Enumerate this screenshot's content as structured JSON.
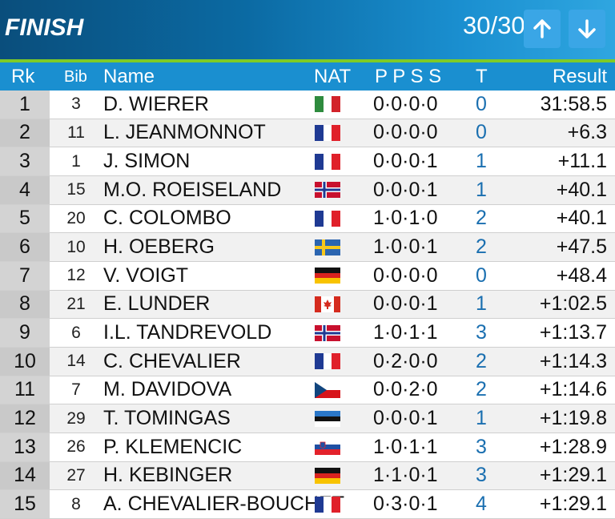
{
  "header": {
    "title": "FINISH",
    "counter": "30/30",
    "up_icon": "arrow-up-icon",
    "down_icon": "arrow-down-icon"
  },
  "columns": {
    "rank": "Rk",
    "bib": "Bib",
    "name": "Name",
    "nat": "NAT",
    "penalties": "P P S S",
    "total": "T",
    "result": "Result"
  },
  "colors": {
    "header_blue": "#0b6aa3",
    "column_blue": "#1a8fd0",
    "accent_green": "#7ecb27",
    "button_blue": "#3aa6e6"
  },
  "rows": [
    {
      "rank": "1",
      "bib": "3",
      "name": "D. WIERER",
      "nat": "ITA",
      "shooting": "0·0·0·0",
      "total": "0",
      "result": "31:58.5"
    },
    {
      "rank": "2",
      "bib": "11",
      "name": "L. JEANMONNOT",
      "nat": "FRA",
      "shooting": "0·0·0·0",
      "total": "0",
      "result": "+6.3"
    },
    {
      "rank": "3",
      "bib": "1",
      "name": "J. SIMON",
      "nat": "FRA",
      "shooting": "0·0·0·1",
      "total": "1",
      "result": "+11.1"
    },
    {
      "rank": "4",
      "bib": "15",
      "name": "M.O. ROEISELAND",
      "nat": "NOR",
      "shooting": "0·0·0·1",
      "total": "1",
      "result": "+40.1"
    },
    {
      "rank": "5",
      "bib": "20",
      "name": "C. COLOMBO",
      "nat": "FRA",
      "shooting": "1·0·1·0",
      "total": "2",
      "result": "+40.1"
    },
    {
      "rank": "6",
      "bib": "10",
      "name": "H. OEBERG",
      "nat": "SWE",
      "shooting": "1·0·0·1",
      "total": "2",
      "result": "+47.5"
    },
    {
      "rank": "7",
      "bib": "12",
      "name": "V. VOIGT",
      "nat": "GER",
      "shooting": "0·0·0·0",
      "total": "0",
      "result": "+48.4"
    },
    {
      "rank": "8",
      "bib": "21",
      "name": "E. LUNDER",
      "nat": "CAN",
      "shooting": "0·0·0·1",
      "total": "1",
      "result": "+1:02.5"
    },
    {
      "rank": "9",
      "bib": "6",
      "name": "I.L. TANDREVOLD",
      "nat": "NOR",
      "shooting": "1·0·1·1",
      "total": "3",
      "result": "+1:13.7"
    },
    {
      "rank": "10",
      "bib": "14",
      "name": "C. CHEVALIER",
      "nat": "FRA",
      "shooting": "0·2·0·0",
      "total": "2",
      "result": "+1:14.3"
    },
    {
      "rank": "11",
      "bib": "7",
      "name": "M. DAVIDOVA",
      "nat": "CZE",
      "shooting": "0·0·2·0",
      "total": "2",
      "result": "+1:14.6"
    },
    {
      "rank": "12",
      "bib": "29",
      "name": "T. TOMINGAS",
      "nat": "EST",
      "shooting": "0·0·0·1",
      "total": "1",
      "result": "+1:19.8"
    },
    {
      "rank": "13",
      "bib": "26",
      "name": "P. KLEMENCIC",
      "nat": "SLO",
      "shooting": "1·0·1·1",
      "total": "3",
      "result": "+1:28.9"
    },
    {
      "rank": "14",
      "bib": "27",
      "name": "H. KEBINGER",
      "nat": "GER",
      "shooting": "1·1·0·1",
      "total": "3",
      "result": "+1:29.1"
    },
    {
      "rank": "15",
      "bib": "8",
      "name": "A. CHEVALIER-BOUCHET",
      "nat": "FRA",
      "shooting": "0·3·0·1",
      "total": "4",
      "result": "+1:29.1"
    }
  ]
}
